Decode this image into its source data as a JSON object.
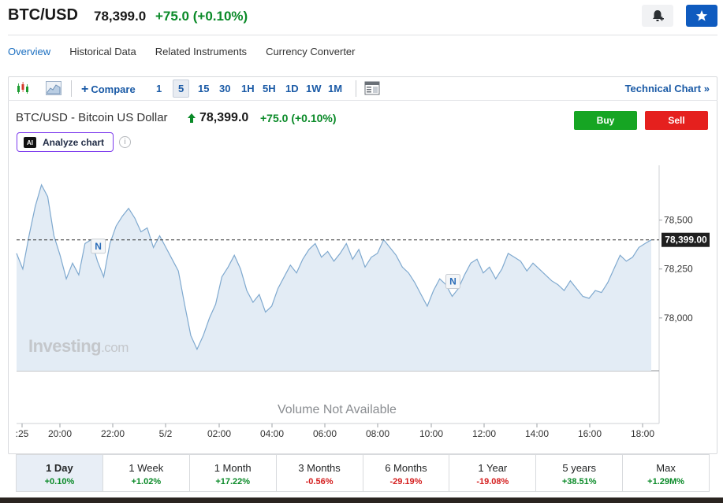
{
  "header": {
    "pair": "BTC/USD",
    "price": "78,399.0",
    "change": "+75.0",
    "change_pct": "(+0.10%)",
    "bell_icon": "bell-add-icon",
    "star_icon": "star-icon"
  },
  "nav": {
    "tabs": [
      "Overview",
      "Historical Data",
      "Related Instruments",
      "Currency Converter"
    ],
    "active": "Overview"
  },
  "toolbar": {
    "candles_icon": "candlestick-icon",
    "area_icon": "area-chart-icon",
    "compare_label": "Compare",
    "intervals": [
      "1",
      "5",
      "15",
      "30",
      "1H",
      "5H",
      "1D",
      "1W",
      "1M"
    ],
    "selected_interval": "5",
    "layout_icon": "layout-icon",
    "technical_chart": "Technical Chart",
    "technical_chevron": "»"
  },
  "instrument": {
    "title": "BTC/USD - Bitcoin US Dollar",
    "price": "78,399.0",
    "change": "+75.0",
    "change_pct": "(+0.10%)",
    "buy_label": "Buy",
    "sell_label": "Sell",
    "analyze_badge": "AI",
    "analyze_label": "Analyze chart",
    "info_icon": "info-icon"
  },
  "colors": {
    "positive": "#0a8a28",
    "negative": "#d41d1d",
    "accent": "#1a5aa6",
    "buy": "#16a523",
    "sell": "#e5201e",
    "line": "#7fa9cf",
    "fill": "#e3ecf5"
  },
  "chart_data": {
    "type": "area",
    "x_ticks": [
      ":25",
      "20:00",
      "22:00",
      "5/2",
      "02:00",
      "04:00",
      "06:00",
      "08:00",
      "10:00",
      "12:00",
      "14:00",
      "16:00",
      "18:00"
    ],
    "y_ticks": [
      "78,500",
      "78,250",
      "78,000"
    ],
    "ylim": [
      77730,
      78780
    ],
    "current_value": 78399.0,
    "current_label": "78,399.00",
    "news_markers": [
      "N",
      "N"
    ],
    "values": [
      78330,
      78250,
      78420,
      78570,
      78680,
      78620,
      78420,
      78320,
      78200,
      78280,
      78220,
      78380,
      78400,
      78290,
      78210,
      78380,
      78470,
      78520,
      78560,
      78510,
      78440,
      78460,
      78360,
      78420,
      78360,
      78300,
      78240,
      78070,
      77910,
      77840,
      77910,
      78000,
      78070,
      78210,
      78260,
      78320,
      78250,
      78140,
      78080,
      78120,
      78030,
      78060,
      78150,
      78210,
      78270,
      78230,
      78300,
      78350,
      78380,
      78310,
      78340,
      78290,
      78330,
      78380,
      78300,
      78350,
      78260,
      78310,
      78330,
      78400,
      78360,
      78320,
      78260,
      78230,
      78180,
      78120,
      78060,
      78140,
      78200,
      78170,
      78110,
      78150,
      78220,
      78280,
      78300,
      78230,
      78260,
      78200,
      78250,
      78330,
      78310,
      78290,
      78240,
      78280,
      78250,
      78220,
      78190,
      78170,
      78140,
      78190,
      78150,
      78110,
      78100,
      78140,
      78130,
      78180,
      78250,
      78320,
      78290,
      78310,
      78360,
      78380,
      78399
    ],
    "watermark_main": "Investing",
    "watermark_suffix": ".com",
    "volume_note": "Volume Not Available"
  },
  "periods": [
    {
      "label": "1 Day",
      "value": "+0.10%",
      "dir": "pos"
    },
    {
      "label": "1 Week",
      "value": "+1.02%",
      "dir": "pos"
    },
    {
      "label": "1 Month",
      "value": "+17.22%",
      "dir": "pos"
    },
    {
      "label": "3 Months",
      "value": "-0.56%",
      "dir": "neg"
    },
    {
      "label": "6 Months",
      "value": "-29.19%",
      "dir": "neg"
    },
    {
      "label": "1 Year",
      "value": "-19.08%",
      "dir": "neg"
    },
    {
      "label": "5 years",
      "value": "+38.51%",
      "dir": "pos"
    },
    {
      "label": "Max",
      "value": "+1.29M%",
      "dir": "pos"
    }
  ]
}
